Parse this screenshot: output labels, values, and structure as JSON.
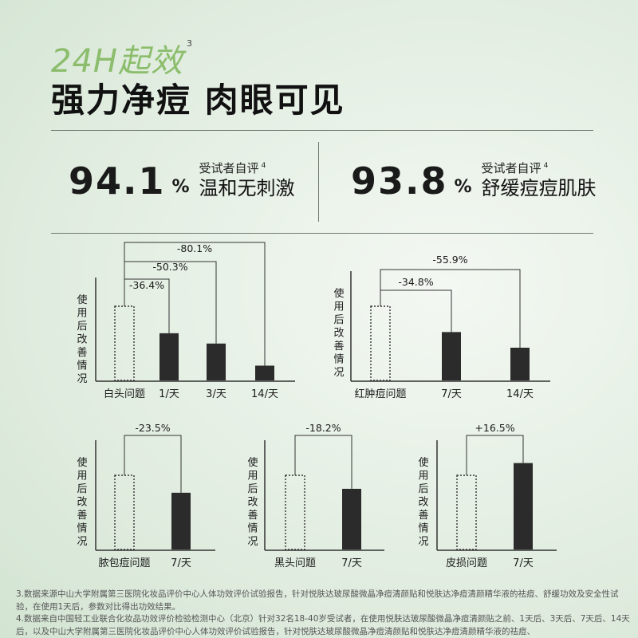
{
  "header": {
    "tag": "24H起效",
    "tag_note": "3",
    "headline": "强力净痘  肉眼可见"
  },
  "stats": [
    {
      "value": "94.1",
      "unit": "%",
      "label_top": "受试者自评",
      "label_note": "4",
      "label_main": "温和无刺激"
    },
    {
      "value": "93.8",
      "unit": "%",
      "label_top": "受试者自评",
      "label_note": "4",
      "label_main": "舒缓痘痘肌肤"
    }
  ],
  "colors": {
    "bar": "#2b2b2b",
    "baseline_bar_border": "#333333",
    "accent_tag": "#8bbd6c"
  },
  "chart_data": [
    {
      "type": "bar",
      "ylabel": "使用后改善情况",
      "baseline_label": "白头问题",
      "categories": [
        "1/天",
        "3/天",
        "14/天"
      ],
      "values": [
        -36.4,
        -50.3,
        -80.1
      ],
      "change_labels": [
        "-36.4%",
        "-50.3%",
        "-80.1%"
      ]
    },
    {
      "type": "bar",
      "ylabel": "使用后改善情况",
      "baseline_label": "红肿痘问题",
      "categories": [
        "7/天",
        "14/天"
      ],
      "values": [
        -34.8,
        -55.9
      ],
      "change_labels": [
        "-34.8%",
        "-55.9%"
      ]
    },
    {
      "type": "bar",
      "ylabel": "使用后改善情况",
      "baseline_label": "脓包痘问题",
      "categories": [
        "7/天"
      ],
      "values": [
        -23.5
      ],
      "change_labels": [
        "-23.5%"
      ]
    },
    {
      "type": "bar",
      "ylabel": "使用后改善情况",
      "baseline_label": "黑头问题",
      "categories": [
        "7/天"
      ],
      "values": [
        -18.2
      ],
      "change_labels": [
        "-18.2%"
      ]
    },
    {
      "type": "bar",
      "ylabel": "使用后改善情况",
      "baseline_label": "皮损问题",
      "categories": [
        "7/天"
      ],
      "values": [
        16.5
      ],
      "change_labels": [
        "+16.5%"
      ]
    }
  ],
  "footnotes": [
    "3.数据来源中山大学附属第三医院化妆品评价中心人体功效评价试验报告，针对悦肤达玻尿酸微晶净痘清颜贴和悦肤达净痘清颜精华液的祛痘、舒缓功效及安全性试验，在使用1天后，参数对比得出功效结果。",
    "4.数据来自中国轻工业联合化妆品功效评价检验检测中心（北京）针对32名18-40岁受试者，在使用悦肤达玻尿酸微晶净痘清颜贴之前、1天后、3天后、7天后、14天后，以及中山大学附属第三医院化妆品评价中心人体功效评价试验报告，针对悦肤达玻尿酸微晶净痘清颜贴和悦肤达净痘清颜精华液的祛痘、"
  ]
}
